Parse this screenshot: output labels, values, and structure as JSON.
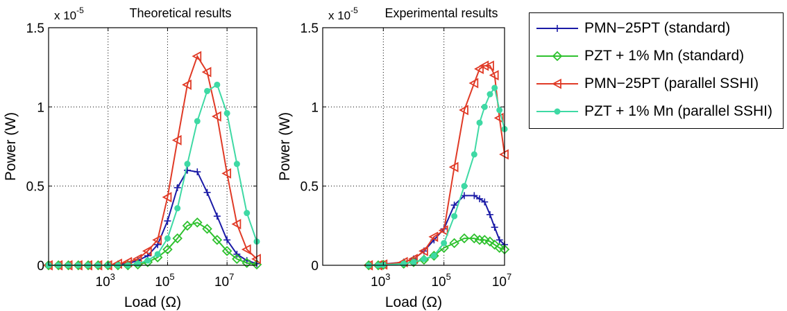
{
  "chart_data": [
    {
      "type": "line",
      "title": "Theoretical results",
      "xlabel": "Load (Ω)",
      "ylabel": "Power (W)",
      "y_multiplier": "x 10",
      "y_exponent": "-5",
      "x_scale": "log",
      "xlim": [
        10,
        100000000
      ],
      "ylim": [
        0,
        1.5
      ],
      "x_ticks": [
        1000,
        100000,
        10000000
      ],
      "x_tick_labels": [
        {
          "base": "10",
          "exp": "3"
        },
        {
          "base": "10",
          "exp": "5"
        },
        {
          "base": "10",
          "exp": "7"
        }
      ],
      "y_ticks": [
        0,
        0.5,
        1,
        1.5
      ],
      "y_tick_labels": [
        "0",
        "0.5",
        "1",
        "1.5"
      ],
      "grid": true,
      "series": [
        {
          "name": "PMN−25PT (standard)",
          "color": "#1a1aa6",
          "marker": "plus",
          "x": [
            10,
            21.5,
            46.4,
            100,
            215,
            464,
            1000,
            2150,
            4640,
            10000,
            21500,
            46400,
            100000,
            215000,
            464000,
            1000000,
            2150000,
            4640000,
            10000000,
            21500000,
            46400000,
            100000000
          ],
          "y": [
            0,
            0,
            0,
            0,
            0,
            0,
            0,
            0.005,
            0.01,
            0.03,
            0.06,
            0.13,
            0.28,
            0.49,
            0.6,
            0.59,
            0.46,
            0.31,
            0.16,
            0.07,
            0.03,
            0.01
          ]
        },
        {
          "name": "PZT + 1% Mn (standard)",
          "color": "#2ec12e",
          "marker": "diamond",
          "x": [
            10,
            21.5,
            46.4,
            100,
            215,
            464,
            1000,
            2150,
            4640,
            10000,
            21500,
            46400,
            100000,
            215000,
            464000,
            1000000,
            2150000,
            4640000,
            10000000,
            21500000,
            46400000,
            100000000
          ],
          "y": [
            0,
            0,
            0,
            0,
            0,
            0,
            0,
            0,
            0,
            0.005,
            0.02,
            0.05,
            0.1,
            0.17,
            0.25,
            0.27,
            0.23,
            0.16,
            0.09,
            0.04,
            0.015,
            0.005
          ]
        },
        {
          "name": "PMN−25PT (parallel SSHI)",
          "color": "#e03a26",
          "marker": "triangle-left",
          "x": [
            10,
            21.5,
            46.4,
            100,
            215,
            464,
            1000,
            2150,
            4640,
            10000,
            21500,
            46400,
            100000,
            215000,
            464000,
            1000000,
            2150000,
            4640000,
            10000000,
            21500000,
            46400000,
            100000000
          ],
          "y": [
            0,
            0,
            0,
            0,
            0,
            0,
            0,
            0.01,
            0.02,
            0.04,
            0.09,
            0.16,
            0.43,
            0.79,
            1.14,
            1.32,
            1.22,
            0.94,
            0.58,
            0.26,
            0.1,
            0.04
          ]
        },
        {
          "name": "PZT + 1% Mn (parallel SSHI)",
          "color": "#3ed9a4",
          "marker": "dot",
          "x": [
            10,
            21.5,
            46.4,
            100,
            215,
            464,
            1000,
            2150,
            4640,
            10000,
            21500,
            46400,
            100000,
            215000,
            464000,
            1000000,
            2150000,
            4640000,
            10000000,
            21500000,
            46400000,
            100000000
          ],
          "y": [
            0,
            0,
            0,
            0,
            0,
            0,
            0,
            0,
            0,
            0.01,
            0.03,
            0.07,
            0.17,
            0.36,
            0.64,
            0.91,
            1.1,
            1.14,
            0.96,
            0.64,
            0.33,
            0.15
          ]
        }
      ]
    },
    {
      "type": "line",
      "title": "Experimental results",
      "xlabel": "Load (Ω)",
      "ylabel": "Power (W)",
      "y_multiplier": "x 10",
      "y_exponent": "-5",
      "x_scale": "log",
      "xlim": [
        10,
        10000000
      ],
      "ylim": [
        0,
        1.5
      ],
      "x_ticks": [
        1000,
        100000,
        10000000
      ],
      "x_tick_labels": [
        {
          "base": "10",
          "exp": "3"
        },
        {
          "base": "10",
          "exp": "5"
        },
        {
          "base": "10",
          "exp": "7"
        }
      ],
      "y_ticks": [
        0,
        0.5,
        1,
        1.5
      ],
      "y_tick_labels": [
        "0",
        "0.5",
        "1",
        "1.5"
      ],
      "grid": true,
      "series": [
        {
          "name": "PMN−25PT (standard)",
          "color": "#1a1aa6",
          "marker": "plus",
          "x": [
            330,
            680,
            1000,
            4700,
            10000,
            22000,
            47000,
            100000,
            220000,
            470000,
            1000000,
            1500000,
            2200000,
            3300000,
            4700000,
            6800000,
            10000000
          ],
          "y": [
            0,
            0.003,
            0.007,
            0.02,
            0.04,
            0.09,
            0.16,
            0.23,
            0.38,
            0.44,
            0.44,
            0.42,
            0.4,
            0.32,
            0.24,
            0.16,
            0.13
          ]
        },
        {
          "name": "PZT + 1% Mn (standard)",
          "color": "#2ec12e",
          "marker": "diamond",
          "x": [
            330,
            680,
            1000,
            4700,
            10000,
            22000,
            47000,
            100000,
            220000,
            470000,
            1000000,
            1500000,
            2200000,
            3300000,
            4700000,
            6800000,
            10000000
          ],
          "y": [
            0,
            0,
            0.003,
            0.01,
            0.02,
            0.035,
            0.06,
            0.11,
            0.14,
            0.17,
            0.17,
            0.16,
            0.16,
            0.15,
            0.13,
            0.11,
            0.1
          ]
        },
        {
          "name": "PMN−25PT (parallel SSHI)",
          "color": "#e03a26",
          "marker": "triangle-left",
          "x": [
            330,
            680,
            1000,
            4700,
            10000,
            22000,
            47000,
            100000,
            220000,
            470000,
            1000000,
            1500000,
            2200000,
            3300000,
            4700000,
            6800000,
            10000000
          ],
          "y": [
            0,
            0,
            0.005,
            0.02,
            0.04,
            0.09,
            0.18,
            0.22,
            0.62,
            0.98,
            1.15,
            1.24,
            1.26,
            1.26,
            1.2,
            0.93,
            0.7
          ]
        },
        {
          "name": "PZT + 1% Mn (parallel SSHI)",
          "color": "#3ed9a4",
          "marker": "dot",
          "x": [
            330,
            680,
            1000,
            4700,
            10000,
            22000,
            47000,
            100000,
            220000,
            470000,
            1000000,
            1500000,
            2200000,
            3300000,
            4700000,
            6800000,
            10000000
          ],
          "y": [
            0,
            0,
            0.002,
            0.01,
            0.02,
            0.04,
            0.06,
            0.14,
            0.31,
            0.5,
            0.7,
            0.9,
            1.0,
            1.08,
            1.12,
            0.98,
            0.86
          ]
        }
      ]
    }
  ],
  "legend": {
    "placement": "right",
    "items": [
      {
        "label": "PMN−25PT (standard)",
        "color": "#1a1aa6",
        "marker": "plus"
      },
      {
        "label": "PZT + 1% Mn (standard)",
        "color": "#2ec12e",
        "marker": "diamond"
      },
      {
        "label": "PMN−25PT (parallel SSHI)",
        "color": "#e03a26",
        "marker": "triangle-left"
      },
      {
        "label": "PZT + 1% Mn (parallel SSHI)",
        "color": "#3ed9a4",
        "marker": "dot"
      }
    ]
  }
}
